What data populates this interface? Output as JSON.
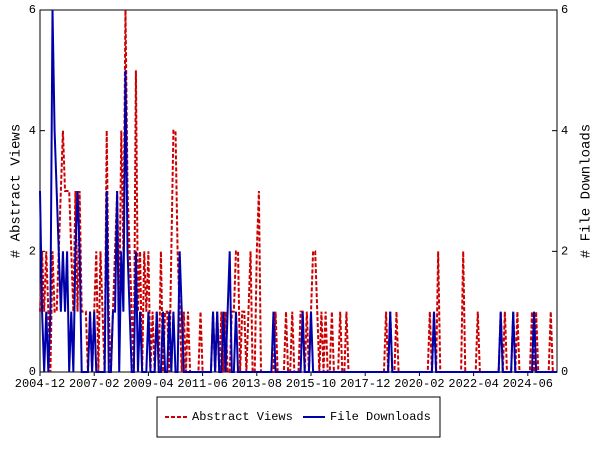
{
  "chart_data": {
    "type": "line",
    "y_label": "# Abstract Views",
    "y2_label": "# File Downloads",
    "categories": [
      "2004-12",
      null,
      null,
      null,
      null,
      null,
      null,
      null,
      null,
      null,
      null,
      null,
      null,
      null,
      null,
      null,
      null,
      null,
      null,
      null,
      null,
      null,
      null,
      null,
      null,
      null,
      "2007-02",
      null,
      null,
      null,
      null,
      null,
      null,
      null,
      null,
      null,
      null,
      null,
      null,
      null,
      null,
      null,
      null,
      null,
      null,
      null,
      null,
      null,
      null,
      null,
      null,
      null,
      "2009-04",
      null,
      null,
      null,
      null,
      null,
      null,
      null,
      null,
      null,
      null,
      null,
      null,
      null,
      null,
      null,
      null,
      null,
      null,
      null,
      null,
      null,
      null,
      null,
      null,
      null,
      "2011-06",
      null,
      null,
      null,
      null,
      null,
      null,
      null,
      null,
      null,
      null,
      null,
      null,
      null,
      null,
      null,
      null,
      null,
      null,
      null,
      null,
      null,
      null,
      null,
      null,
      null,
      "2013-08",
      null,
      null,
      null,
      null,
      null,
      null,
      null,
      null,
      null,
      null,
      null,
      null,
      null,
      null,
      null,
      null,
      null,
      null,
      null,
      null,
      null,
      null,
      null,
      null,
      null,
      "2015-10",
      null,
      null,
      null,
      null,
      null,
      null,
      null,
      null,
      null,
      null,
      null,
      null,
      null,
      null,
      null,
      null,
      null,
      null,
      null,
      null,
      null,
      null,
      null,
      null,
      null,
      "2017-12",
      null,
      null,
      null,
      null,
      null,
      null,
      null,
      null,
      null,
      null,
      null,
      null,
      null,
      null,
      null,
      null,
      null,
      null,
      null,
      null,
      null,
      null,
      null,
      null,
      null,
      "2020-02",
      null,
      null,
      null,
      null,
      null,
      null,
      null,
      null,
      null,
      null,
      null,
      null,
      null,
      null,
      null,
      null,
      null,
      null,
      null,
      null,
      null,
      null,
      null,
      null,
      null,
      "2022-04",
      null,
      null,
      null,
      null,
      null,
      null,
      null,
      null,
      null,
      null,
      null,
      null,
      null,
      null,
      null,
      null,
      null,
      null,
      null,
      null,
      null,
      null,
      null,
      null,
      null,
      "2024-06",
      null,
      null,
      null,
      null,
      null,
      null,
      null,
      null,
      null,
      null,
      null,
      null,
      null,
      null
    ],
    "series": [
      {
        "name": "Abstract Views",
        "color": "#cc0000",
        "dashed": true,
        "values": [
          1,
          2,
          1,
          2,
          1,
          0,
          2,
          1,
          1,
          2,
          3,
          4,
          3,
          3,
          3,
          2,
          1,
          3,
          1,
          3,
          1,
          1,
          1,
          0,
          1,
          0,
          1,
          2,
          0,
          2,
          1,
          0,
          4,
          1,
          0,
          1,
          2,
          3,
          1,
          4,
          2,
          6,
          3,
          2,
          1,
          0,
          5,
          1,
          2,
          0,
          2,
          1,
          2,
          0,
          1,
          0,
          1,
          0,
          2,
          0,
          1,
          1,
          0,
          2,
          4,
          4,
          2,
          1,
          0,
          1,
          0,
          1,
          0,
          0,
          0,
          0,
          0,
          1,
          0,
          0,
          0,
          0,
          0,
          1,
          0,
          1,
          0,
          1,
          0,
          1,
          0,
          0,
          1,
          1,
          2,
          2,
          0,
          1,
          1,
          0,
          1,
          2,
          0,
          0,
          2,
          3,
          0,
          0,
          0,
          0,
          0,
          0,
          0,
          1,
          0,
          0,
          0,
          0,
          1,
          0,
          0,
          1,
          0,
          0,
          0,
          1,
          1,
          0,
          1,
          0,
          1,
          2,
          2,
          1,
          0,
          1,
          0,
          1,
          0,
          0,
          1,
          0,
          0,
          0,
          1,
          0,
          0,
          1,
          0,
          0,
          0,
          0,
          0,
          0,
          0,
          0,
          0,
          0,
          0,
          0,
          0,
          0,
          0,
          0,
          0,
          0,
          1,
          0,
          1,
          0,
          0,
          1,
          0,
          0,
          0,
          0,
          0,
          0,
          0,
          0,
          0,
          0,
          0,
          0,
          0,
          0,
          0,
          1,
          0,
          1,
          0,
          2,
          0,
          0,
          0,
          0,
          0,
          0,
          0,
          0,
          0,
          0,
          0,
          2,
          0,
          0,
          0,
          0,
          0,
          0,
          1,
          0,
          0,
          0,
          0,
          0,
          0,
          0,
          0,
          0,
          0,
          1,
          0,
          1,
          0,
          0,
          0,
          1,
          0,
          1,
          0,
          0,
          0,
          0,
          0,
          0,
          1,
          0,
          1,
          0,
          0,
          0,
          0,
          0,
          0,
          1,
          0,
          0,
          0
        ]
      },
      {
        "name": "File Downloads",
        "color": "#0000aa",
        "dashed": false,
        "axis": "y2",
        "values": [
          3,
          1,
          0,
          1,
          0,
          1,
          6,
          4,
          3,
          2,
          1,
          2,
          1,
          2,
          0,
          1,
          0,
          2,
          3,
          2,
          0,
          0,
          0,
          0,
          1,
          0,
          1,
          0,
          0,
          0,
          0,
          0,
          3,
          0,
          0,
          1,
          1,
          3,
          0,
          2,
          1,
          5,
          2,
          1,
          0,
          0,
          2,
          0,
          1,
          0,
          0,
          0,
          1,
          0,
          0,
          0,
          1,
          0,
          0,
          1,
          0,
          0,
          1,
          0,
          1,
          0,
          0,
          2,
          1,
          0,
          0,
          0,
          0,
          0,
          0,
          0,
          0,
          0,
          0,
          0,
          0,
          0,
          0,
          1,
          0,
          1,
          0,
          0,
          1,
          0,
          1,
          2,
          0,
          0,
          1,
          0,
          0,
          0,
          0,
          0,
          0,
          0,
          0,
          0,
          0,
          0,
          0,
          0,
          0,
          0,
          0,
          0,
          1,
          0,
          0,
          0,
          0,
          0,
          0,
          0,
          0,
          0,
          0,
          0,
          0,
          0,
          1,
          0,
          0,
          0,
          1,
          0,
          0,
          0,
          0,
          0,
          0,
          0,
          0,
          0,
          0,
          0,
          0,
          0,
          0,
          0,
          0,
          0,
          0,
          0,
          0,
          0,
          0,
          0,
          0,
          0,
          0,
          0,
          0,
          0,
          0,
          0,
          0,
          0,
          0,
          0,
          0,
          0,
          1,
          0,
          0,
          0,
          0,
          0,
          0,
          0,
          0,
          0,
          0,
          0,
          0,
          0,
          0,
          0,
          0,
          0,
          0,
          0,
          0,
          1,
          0,
          0,
          0,
          0,
          0,
          0,
          0,
          0,
          0,
          0,
          0,
          0,
          0,
          0,
          0,
          0,
          0,
          0,
          0,
          0,
          0,
          0,
          0,
          0,
          0,
          0,
          0,
          0,
          0,
          0,
          0,
          1,
          0,
          0,
          0,
          0,
          0,
          1,
          0,
          0,
          0,
          0,
          0,
          0,
          0,
          0,
          0,
          1,
          0,
          0,
          0,
          0,
          0,
          0,
          0,
          0,
          0,
          0,
          0
        ]
      }
    ],
    "ylim": [
      0,
      6
    ],
    "yticks": [
      0,
      2,
      4,
      6
    ],
    "y2lim": [
      0,
      6
    ],
    "y2ticks": [
      0,
      2,
      4,
      6
    ],
    "legend": "bottom"
  }
}
